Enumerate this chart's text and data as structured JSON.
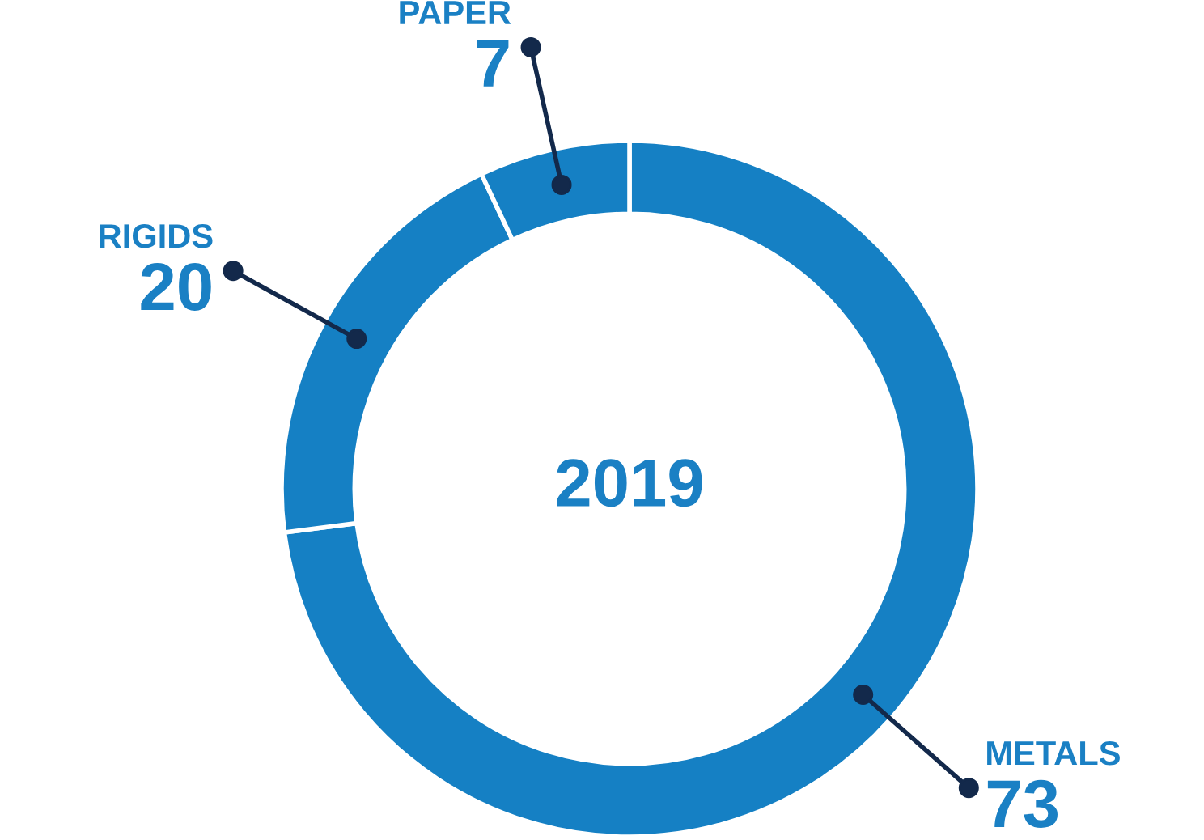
{
  "chart_data": {
    "type": "donut",
    "title": "2019",
    "categories": [
      "METALS",
      "RIGIDS",
      "PAPER"
    ],
    "values": [
      73,
      20,
      7
    ],
    "colors": [
      "#1580c4",
      "#1580c4",
      "#1580c4"
    ],
    "data_labels": true
  }
}
